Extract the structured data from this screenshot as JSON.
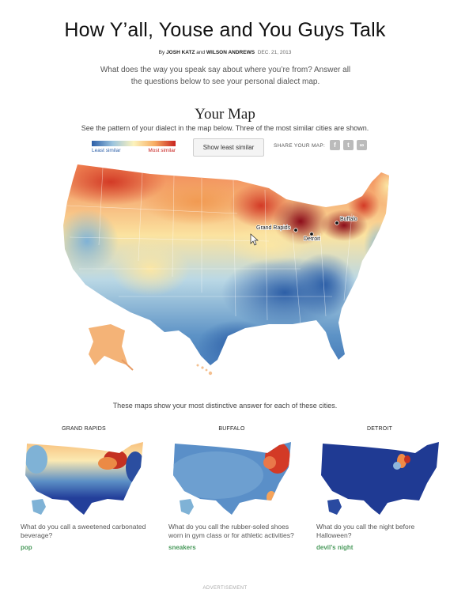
{
  "header": {
    "title": "How Y’all, Youse and You Guys Talk",
    "byline_prefix": "By",
    "author1": "JOSH KATZ",
    "and": "and",
    "author2": "WILSON ANDREWS",
    "date": "DEC. 21, 2013",
    "intro": "What does the way you speak say about where you’re from? Answer all the questions below to see your personal dialect map."
  },
  "map_section": {
    "title": "Your Map",
    "subtitle": "See the pattern of your dialect in the map below. Three of the most similar cities are shown.",
    "legend_left": "Least similar",
    "legend_right": "Most similar",
    "toggle_button": "Show least similar",
    "share_label": "SHARE YOUR MAP:",
    "share_icons": [
      "facebook-icon",
      "twitter-icon",
      "link-icon"
    ],
    "cities": [
      "Buffalo",
      "Grand Rapids",
      "Detroit"
    ],
    "colors": {
      "least": "#2c5fa8",
      "mid": "#fcf3bd",
      "most": "#c8221f"
    }
  },
  "cities_section": {
    "caption": "These maps show your most distinctive answer for each of these cities.",
    "maps": [
      {
        "city": "GRAND RAPIDS",
        "question": "What do you call a sweetened carbonated beverage?",
        "answer": "pop"
      },
      {
        "city": "BUFFALO",
        "question": "What do you call the rubber-soled shoes worn in gym class or for athletic activities?",
        "answer": "sneakers"
      },
      {
        "city": "DETROIT",
        "question": "What do you call the night before Halloween?",
        "answer": "devil’s night"
      }
    ]
  },
  "footer": {
    "advert": "ADVERTISEMENT"
  }
}
